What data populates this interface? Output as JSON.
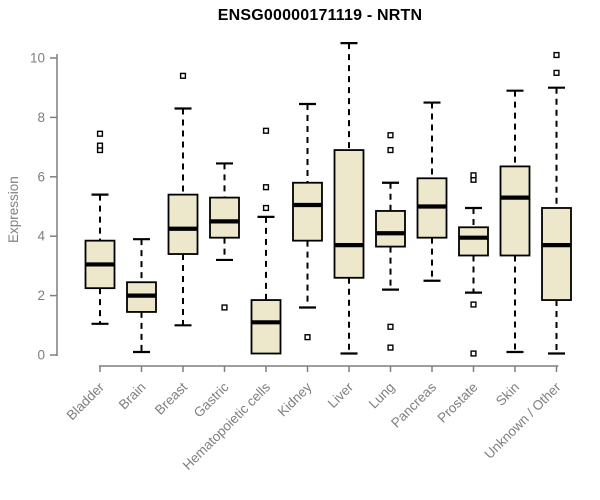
{
  "header": {
    "title": "ENSG00000171119 - NRTN"
  },
  "colors": {
    "background": "#FFFFFF",
    "box_fill": "#EDE7CB",
    "box_stroke": "#000000",
    "median": "#000000",
    "whisker": "#000000",
    "outlier_stroke": "#000000",
    "outlier_fill": "#FFFFFF",
    "axis": "#7F7F7F",
    "tick_label": "#7F7F7F",
    "title_color": "#000000"
  },
  "chart_data": {
    "type": "boxplot",
    "title": "ENSG00000171119 - NRTN",
    "xlabel": "",
    "ylabel": "Expression",
    "ylim": [
      0,
      10.5
    ],
    "yticks": [
      0,
      2,
      4,
      6,
      8,
      10
    ],
    "grid": false,
    "legend": "none",
    "categories": [
      "Bladder",
      "Brain",
      "Breast",
      "Gastric",
      "Hematopoietic cells",
      "Kidney",
      "Liver",
      "Lung",
      "Pancreas",
      "Prostate",
      "Skin",
      "Unknown / Other"
    ],
    "series": [
      {
        "category": "Bladder",
        "whisker_low": 1.05,
        "q1": 2.25,
        "median": 3.05,
        "q3": 3.85,
        "whisker_high": 5.4,
        "outliers": [
          6.9,
          7.05,
          7.45
        ]
      },
      {
        "category": "Brain",
        "whisker_low": 0.1,
        "q1": 1.45,
        "median": 2.0,
        "q3": 2.45,
        "whisker_high": 3.9,
        "outliers": []
      },
      {
        "category": "Breast",
        "whisker_low": 1.0,
        "q1": 3.4,
        "median": 4.25,
        "q3": 5.4,
        "whisker_high": 8.3,
        "outliers": [
          9.4
        ]
      },
      {
        "category": "Gastric",
        "whisker_low": 3.2,
        "q1": 3.95,
        "median": 4.5,
        "q3": 5.3,
        "whisker_high": 6.45,
        "outliers": [
          1.6
        ]
      },
      {
        "category": "Hematopoietic cells",
        "whisker_low": 0.05,
        "q1": 0.05,
        "median": 1.1,
        "q3": 1.85,
        "whisker_high": 4.65,
        "outliers": [
          4.95,
          5.65,
          7.55
        ]
      },
      {
        "category": "Kidney",
        "whisker_low": 1.6,
        "q1": 3.85,
        "median": 5.05,
        "q3": 5.8,
        "whisker_high": 8.45,
        "outliers": [
          0.6
        ]
      },
      {
        "category": "Liver",
        "whisker_low": 0.05,
        "q1": 2.6,
        "median": 3.7,
        "q3": 6.9,
        "whisker_high": 10.5,
        "outliers": []
      },
      {
        "category": "Lung",
        "whisker_low": 2.2,
        "q1": 3.65,
        "median": 4.1,
        "q3": 4.85,
        "whisker_high": 5.8,
        "outliers": [
          0.25,
          0.95,
          6.9,
          7.4
        ]
      },
      {
        "category": "Pancreas",
        "whisker_low": 2.5,
        "q1": 3.95,
        "median": 5.0,
        "q3": 5.95,
        "whisker_high": 8.5,
        "outliers": []
      },
      {
        "category": "Prostate",
        "whisker_low": 2.1,
        "q1": 3.35,
        "median": 3.95,
        "q3": 4.3,
        "whisker_high": 4.95,
        "outliers": [
          0.05,
          1.7,
          5.9,
          6.05
        ]
      },
      {
        "category": "Skin",
        "whisker_low": 0.1,
        "q1": 3.35,
        "median": 5.3,
        "q3": 6.35,
        "whisker_high": 8.9,
        "outliers": []
      },
      {
        "category": "Unknown / Other",
        "whisker_low": 0.05,
        "q1": 1.85,
        "median": 3.7,
        "q3": 4.95,
        "whisker_high": 9.0,
        "outliers": [
          9.5,
          10.1
        ]
      }
    ]
  }
}
